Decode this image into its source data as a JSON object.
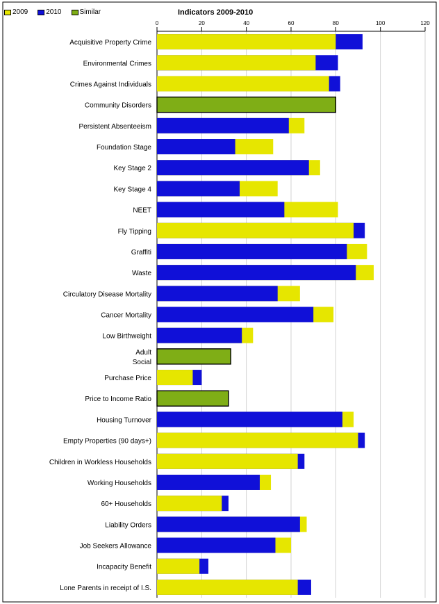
{
  "chart_data": {
    "type": "bar",
    "title": "Indicators 2009-2010",
    "xlim": [
      0,
      120
    ],
    "xticks": [
      0,
      20,
      40,
      60,
      80,
      100,
      120
    ],
    "grid": true,
    "legend_position": "top-left",
    "legend": [
      {
        "name": "2009",
        "color": "#e6e600"
      },
      {
        "name": "2010",
        "color": "#1010d8"
      },
      {
        "name": "Similar",
        "color": "#7fae16"
      }
    ],
    "categories": [
      {
        "label": [
          "Acquisitive Property Crime"
        ],
        "v2009": 80,
        "v2010": 92,
        "similar": null
      },
      {
        "label": [
          "Environmental Crimes"
        ],
        "v2009": 71,
        "v2010": 81,
        "similar": null
      },
      {
        "label": [
          "Crimes Against Individuals"
        ],
        "v2009": 77,
        "v2010": 82,
        "similar": null
      },
      {
        "label": [
          "Community Disorders"
        ],
        "v2009": null,
        "v2010": null,
        "similar": 80
      },
      {
        "label": [
          "Persistent Absenteeism"
        ],
        "v2009": 66,
        "v2010": 59,
        "similar": null
      },
      {
        "label": [
          "Foundation Stage"
        ],
        "v2009": 52,
        "v2010": 35,
        "similar": null
      },
      {
        "label": [
          "Key Stage 2"
        ],
        "v2009": 73,
        "v2010": 68,
        "similar": null
      },
      {
        "label": [
          "Key Stage 4"
        ],
        "v2009": 54,
        "v2010": 37,
        "similar": null
      },
      {
        "label": [
          "NEET"
        ],
        "v2009": 81,
        "v2010": 57,
        "similar": null
      },
      {
        "label": [
          "Fly Tipping"
        ],
        "v2009": 88,
        "v2010": 93,
        "similar": null
      },
      {
        "label": [
          "Graffiti"
        ],
        "v2009": 94,
        "v2010": 85,
        "similar": null
      },
      {
        "label": [
          "Waste"
        ],
        "v2009": 97,
        "v2010": 89,
        "similar": null
      },
      {
        "label": [
          "Circulatory Disease Mortality"
        ],
        "v2009": 64,
        "v2010": 54,
        "similar": null
      },
      {
        "label": [
          "Cancer Mortality"
        ],
        "v2009": 79,
        "v2010": 70,
        "similar": null
      },
      {
        "label": [
          "Low Birthweight"
        ],
        "v2009": 43,
        "v2010": 38,
        "similar": null
      },
      {
        "label": [
          "Adult",
          "Social"
        ],
        "v2009": null,
        "v2010": null,
        "similar": 33
      },
      {
        "label": [
          "Purchase Price"
        ],
        "v2009": 16,
        "v2010": 20,
        "similar": null
      },
      {
        "label": [
          "Price to Income Ratio"
        ],
        "v2009": null,
        "v2010": null,
        "similar": 32
      },
      {
        "label": [
          "Housing Turnover"
        ],
        "v2009": 88,
        "v2010": 83,
        "similar": null
      },
      {
        "label": [
          "Empty Properties (90 days+)"
        ],
        "v2009": 90,
        "v2010": 93,
        "similar": null
      },
      {
        "label": [
          "Children in Workless Households"
        ],
        "v2009": 63,
        "v2010": 66,
        "similar": null
      },
      {
        "label": [
          "Working Households"
        ],
        "v2009": 51,
        "v2010": 46,
        "similar": null
      },
      {
        "label": [
          "60+ Households"
        ],
        "v2009": 29,
        "v2010": 32,
        "similar": null
      },
      {
        "label": [
          "Liability Orders"
        ],
        "v2009": 67,
        "v2010": 64,
        "similar": null
      },
      {
        "label": [
          "Job Seekers Allowance"
        ],
        "v2009": 60,
        "v2010": 53,
        "similar": null
      },
      {
        "label": [
          "Incapacity Benefit"
        ],
        "v2009": 19,
        "v2010": 23,
        "similar": null
      },
      {
        "label": [
          "Lone Parents in receipt of I.S."
        ],
        "v2009": 63,
        "v2010": 69,
        "similar": null
      }
    ]
  }
}
